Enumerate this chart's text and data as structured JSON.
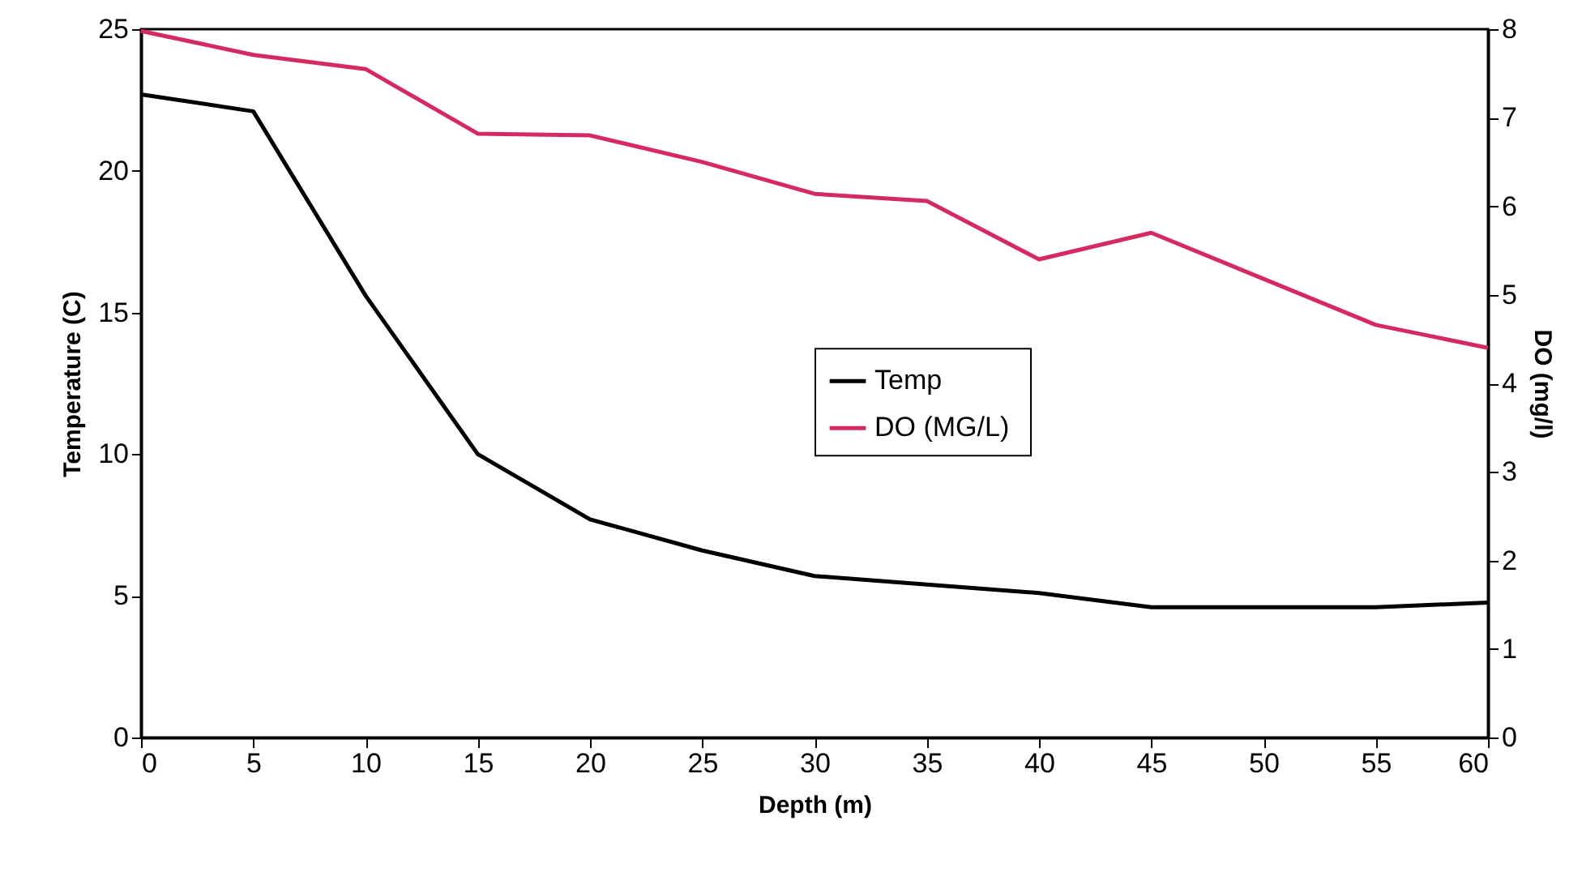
{
  "chart_data": {
    "type": "line",
    "xlabel": "Depth (m)",
    "ylabel": "Temperature (C)",
    "y2label": "DO (mg/l)",
    "xlim": [
      0,
      60
    ],
    "xticks": [
      0,
      5,
      10,
      15,
      20,
      25,
      30,
      35,
      40,
      45,
      50,
      55,
      60
    ],
    "ylim": [
      0,
      25
    ],
    "yticks": [
      0,
      5,
      10,
      15,
      20,
      25
    ],
    "y2lim": [
      0,
      8
    ],
    "y2ticks": [
      0,
      1,
      2,
      3,
      4,
      5,
      6,
      7,
      8
    ],
    "grid": false,
    "legend": "center",
    "series": [
      {
        "name": "Temp",
        "color": "#000000",
        "x": [
          0,
          5,
          10,
          15,
          20,
          25,
          30,
          35,
          40,
          45,
          55,
          60
        ],
        "values": [
          22.7,
          22.1,
          15.6,
          10.0,
          7.7,
          6.6,
          5.7,
          5.4,
          5.1,
          4.6,
          4.6,
          4.76
        ]
      },
      {
        "name": "DO  (MG/L)",
        "color": "#d42a5f",
        "axis": "y2",
        "x": [
          0,
          5,
          10,
          15,
          20,
          25,
          30,
          35,
          40,
          45,
          55,
          60
        ],
        "values": [
          7.98,
          7.71,
          7.55,
          6.82,
          6.8,
          6.5,
          6.14,
          6.06,
          5.4,
          5.7,
          4.66,
          4.4
        ]
      }
    ]
  }
}
